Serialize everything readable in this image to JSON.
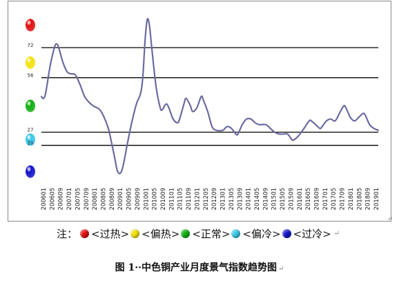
{
  "chart_data": {
    "type": "line",
    "title": "",
    "xlabel": "",
    "ylabel": "",
    "ylim": [
      0,
      90
    ],
    "x_ticks": [
      "200601",
      "200605",
      "200609",
      "200701",
      "200705",
      "200709",
      "200801",
      "200805",
      "200809",
      "200901",
      "200905",
      "200909",
      "201001",
      "201005",
      "201009",
      "201101",
      "201105",
      "201109",
      "201201",
      "201205",
      "201209",
      "201301",
      "201305",
      "201309",
      "201401",
      "201405",
      "201409",
      "201501",
      "201505",
      "201509",
      "201601",
      "201605",
      "201609",
      "201701",
      "201705",
      "201709",
      "201801",
      "201805",
      "201809",
      "201901"
    ],
    "threshold_lines": [
      {
        "label": "72",
        "value": 72
      },
      {
        "label": "56",
        "value": 56
      },
      {
        "label": "27",
        "value": 27
      },
      {
        "label": "20",
        "value": 20
      }
    ],
    "series": [
      {
        "color": "#6a6aa0",
        "points": [
          [
            "2006-01",
            46
          ],
          [
            "2006-02",
            45
          ],
          [
            "2006-03",
            48
          ],
          [
            "2006-05",
            62
          ],
          [
            "2006-07",
            72
          ],
          [
            "2006-08",
            74
          ],
          [
            "2006-09",
            72
          ],
          [
            "2006-11",
            64
          ],
          [
            "2007-01",
            59
          ],
          [
            "2007-03",
            58
          ],
          [
            "2007-04",
            58
          ],
          [
            "2007-05",
            57
          ],
          [
            "2007-07",
            52
          ],
          [
            "2007-09",
            46
          ],
          [
            "2007-11",
            43
          ],
          [
            "2008-01",
            41
          ],
          [
            "2008-04",
            39
          ],
          [
            "2008-06",
            35
          ],
          [
            "2008-08",
            29
          ],
          [
            "2008-09",
            24
          ],
          [
            "2008-11",
            13
          ],
          [
            "2008-12",
            7
          ],
          [
            "2009-01",
            5
          ],
          [
            "2009-02",
            6
          ],
          [
            "2009-03",
            10
          ],
          [
            "2009-05",
            22
          ],
          [
            "2009-07",
            33
          ],
          [
            "2009-09",
            42
          ],
          [
            "2009-11",
            48
          ],
          [
            "2009-12",
            57
          ],
          [
            "2010-01",
            76
          ],
          [
            "2010-02",
            87
          ],
          [
            "2010-03",
            84
          ],
          [
            "2010-04",
            73
          ],
          [
            "2010-06",
            52
          ],
          [
            "2010-08",
            40
          ],
          [
            "2010-09",
            39
          ],
          [
            "2010-10",
            41
          ],
          [
            "2010-11",
            42
          ],
          [
            "2010-12",
            40
          ],
          [
            "2011-02",
            34
          ],
          [
            "2011-04",
            32
          ],
          [
            "2011-05",
            34
          ],
          [
            "2011-07",
            42
          ],
          [
            "2011-08",
            45
          ],
          [
            "2011-10",
            41
          ],
          [
            "2011-11",
            38
          ],
          [
            "2012-01",
            40
          ],
          [
            "2012-03",
            46
          ],
          [
            "2012-04",
            44
          ],
          [
            "2012-06",
            38
          ],
          [
            "2012-08",
            30
          ],
          [
            "2012-10",
            28
          ],
          [
            "2013-01",
            28
          ],
          [
            "2013-03",
            30
          ],
          [
            "2013-05",
            29
          ],
          [
            "2013-07",
            26
          ],
          [
            "2013-08",
            26
          ],
          [
            "2013-10",
            31
          ],
          [
            "2013-12",
            34
          ],
          [
            "2014-02",
            34
          ],
          [
            "2014-04",
            32
          ],
          [
            "2014-06",
            31
          ],
          [
            "2014-09",
            31
          ],
          [
            "2014-11",
            29
          ],
          [
            "2015-01",
            27
          ],
          [
            "2015-03",
            26
          ],
          [
            "2015-05",
            26
          ],
          [
            "2015-07",
            26
          ],
          [
            "2015-09",
            23
          ],
          [
            "2015-10",
            23
          ],
          [
            "2015-12",
            25
          ],
          [
            "2016-02",
            28
          ],
          [
            "2016-05",
            33
          ],
          [
            "2016-06",
            33
          ],
          [
            "2016-08",
            31
          ],
          [
            "2016-10",
            29
          ],
          [
            "2016-11",
            30
          ],
          [
            "2017-01",
            33
          ],
          [
            "2017-03",
            34
          ],
          [
            "2017-05",
            33
          ],
          [
            "2017-07",
            37
          ],
          [
            "2017-09",
            41
          ],
          [
            "2017-10",
            40
          ],
          [
            "2017-12",
            35
          ],
          [
            "2018-02",
            33
          ],
          [
            "2018-04",
            35
          ],
          [
            "2018-06",
            37
          ],
          [
            "2018-07",
            36
          ],
          [
            "2018-09",
            31
          ],
          [
            "2018-11",
            29
          ],
          [
            "2019-01",
            28
          ]
        ]
      }
    ],
    "side_markers": [
      {
        "color": "#e01010",
        "value": 84
      },
      {
        "color": "#f2e20a",
        "value": 64
      },
      {
        "color": "#0fae12",
        "value": 41
      },
      {
        "color": "#38c8e8",
        "value": 23
      },
      {
        "color": "#1414c8",
        "value": 6
      }
    ]
  },
  "note": {
    "prefix": "注：",
    "items": [
      {
        "color": "#e01010",
        "label": "<过热>"
      },
      {
        "color": "#f2e20a",
        "label": "<偏热>"
      },
      {
        "color": "#0fae12",
        "label": "<正常>"
      },
      {
        "color": "#38c8e8",
        "label": "<偏冷>"
      },
      {
        "color": "#1414c8",
        "label": "<过冷>"
      }
    ],
    "para_mark": "↵"
  },
  "caption": {
    "text": "图 1··中色铜产业月度景气指数趋势图",
    "para_mark": "↵"
  },
  "para_mark_chart": "↵"
}
